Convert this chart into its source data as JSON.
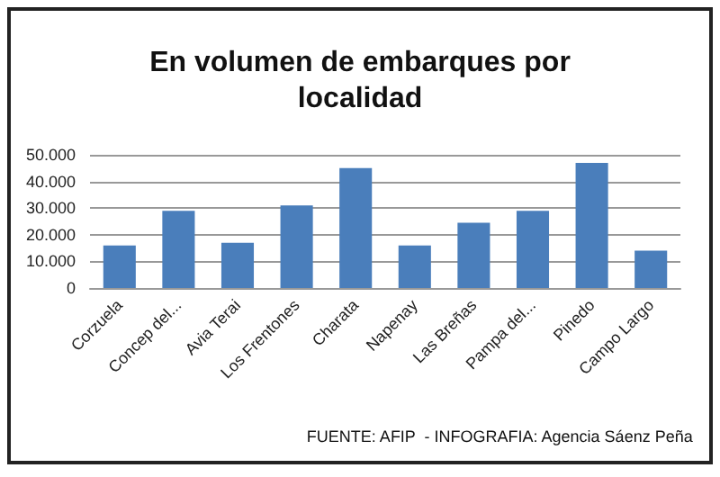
{
  "chart_data": {
    "type": "bar",
    "title": "En volumen de embarques por\nlocalidad",
    "categories": [
      "Corzuela",
      "Concep del...",
      "Avia Terai",
      "Los Frentones",
      "Charata",
      "Napenay",
      "Las Breñas",
      "Pampa del...",
      "Pinedo",
      "Campo Largo"
    ],
    "values": [
      16000,
      29000,
      17000,
      31000,
      45000,
      16000,
      24500,
      29000,
      47000,
      14000
    ],
    "color": "#4a7ebb",
    "ylim": [
      0,
      50000
    ],
    "yticks": [
      {
        "value": 0,
        "label": "0"
      },
      {
        "value": 10000,
        "label": "10.000"
      },
      {
        "value": 20000,
        "label": "20.000"
      },
      {
        "value": 30000,
        "label": "30.000"
      },
      {
        "value": 40000,
        "label": "40.000"
      },
      {
        "value": 50000,
        "label": "50.000"
      }
    ],
    "grid": "y",
    "annotations": [
      "FUENTE: AFIP  - INFOGRAFIA: Agencia Sáenz Peña"
    ]
  }
}
